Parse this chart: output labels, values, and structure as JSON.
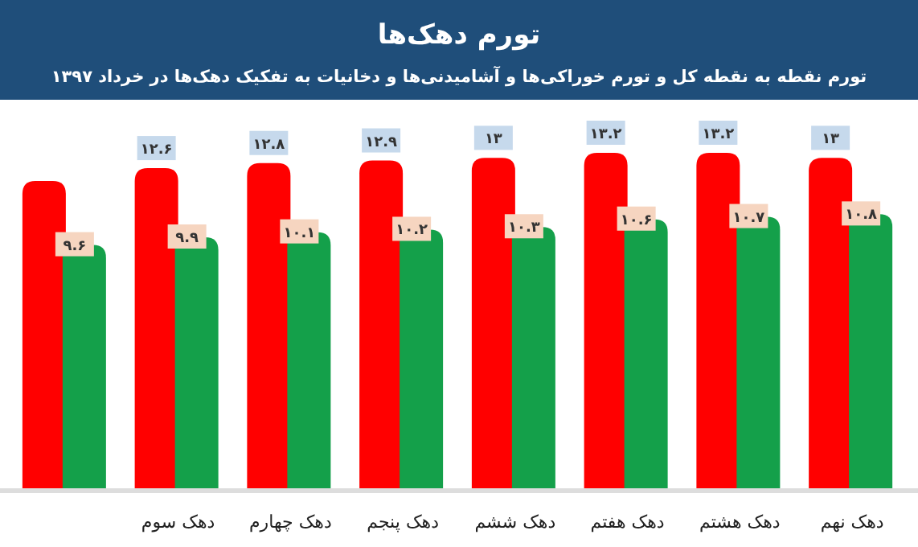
{
  "chart_data": {
    "type": "bar",
    "title": "تورم دهک‌ها",
    "subtitle": "تورم نقطه به نقطه کل و تورم خوراکی‌ها و آشامیدنی‌ها و دخانیات به تفکیک دهک‌ها در خرداد ۱۳۹۷",
    "categories": [
      null,
      "دهک سوم",
      "دهک چهارم",
      "دهک پنجم",
      "دهک ششم",
      "دهک هفتم",
      "دهک هشتم",
      "دهک نهم"
    ],
    "series": [
      {
        "color": "#ff0000",
        "values": [
          12.1,
          12.6,
          12.8,
          12.9,
          13,
          13.2,
          13.2,
          13
        ],
        "value_labels": [
          null,
          "۱۲.۶",
          "۱۲.۸",
          "۱۲.۹",
          "۱۳",
          "۱۳.۲",
          "۱۳.۲",
          "۱۳"
        ]
      },
      {
        "color": "#14a04a",
        "values": [
          9.6,
          9.9,
          10.1,
          10.2,
          10.3,
          10.6,
          10.7,
          10.8
        ],
        "value_labels": [
          "۹.۶",
          "۹.۹",
          "۱۰.۱",
          "۱۰.۲",
          "۱۰.۳",
          "۱۰.۶",
          "۱۰.۷",
          "۱۰.۸"
        ]
      }
    ]
  }
}
